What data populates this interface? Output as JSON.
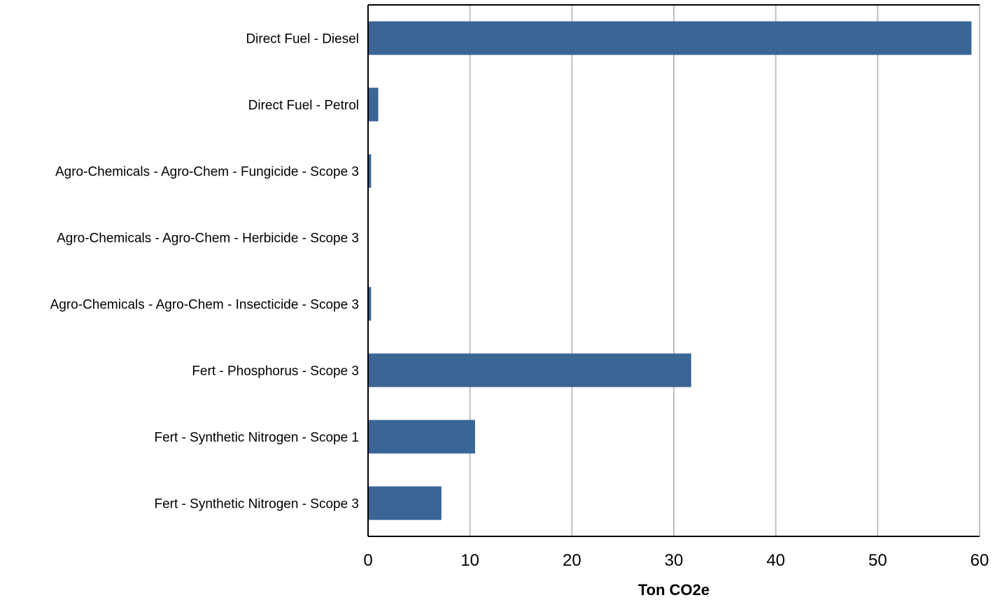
{
  "chart_data": {
    "type": "bar",
    "orientation": "horizontal",
    "categories": [
      "Direct Fuel - Diesel",
      "Direct Fuel - Petrol",
      "Agro-Chemicals - Agro-Chem - Fungicide - Scope 3",
      "Agro-Chemicals - Agro-Chem - Herbicide - Scope 3",
      "Agro-Chemicals - Agro-Chem - Insecticide - Scope 3",
      "Fert - Phosphorus - Scope 3",
      "Fert - Synthetic Nitrogen - Scope 1",
      "Fert - Synthetic Nitrogen - Scope 3"
    ],
    "values": [
      59.2,
      1.0,
      0.3,
      0.0,
      0.3,
      31.7,
      10.5,
      7.2
    ],
    "xlabel": "Ton CO2e",
    "ylabel": "",
    "title": "",
    "xlim": [
      0,
      60
    ],
    "xticks": [
      "0",
      "10",
      "20",
      "30",
      "40",
      "50",
      "60"
    ],
    "grid": "vertical",
    "legend": "none",
    "bar_color": "#3a6595",
    "grid_color": "#c0c0c0",
    "axis_color": "#000000"
  }
}
